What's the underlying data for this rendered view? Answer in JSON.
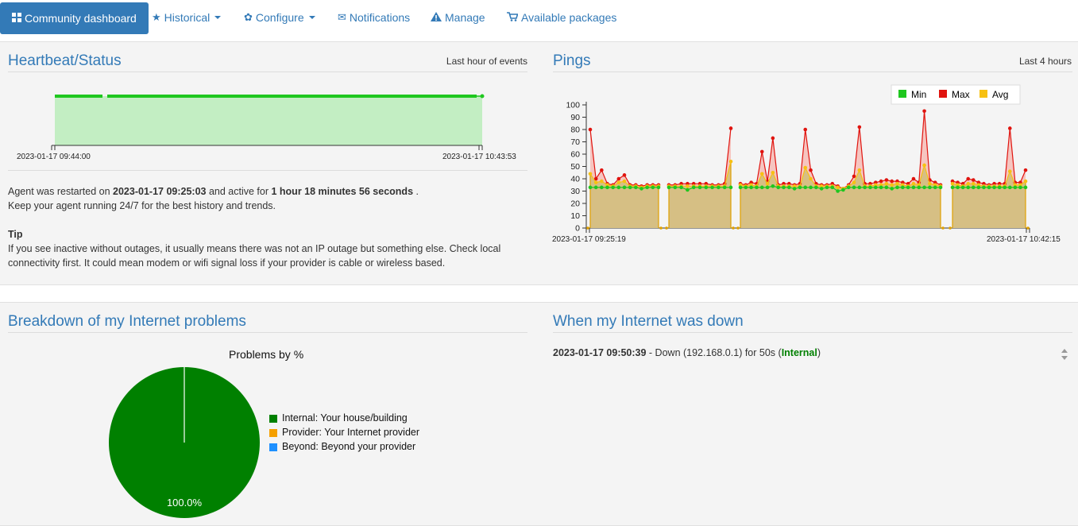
{
  "nav": {
    "items": [
      {
        "label": "Community dashboard",
        "icon": "grid-icon",
        "active": true
      },
      {
        "label": "Historical",
        "icon": "star-icon",
        "dropdown": true
      },
      {
        "label": "Configure",
        "icon": "gear-icon",
        "dropdown": true
      },
      {
        "label": "Notifications",
        "icon": "envelope-icon"
      },
      {
        "label": "Manage",
        "icon": "warning-icon"
      },
      {
        "label": "Available packages",
        "icon": "cart-icon"
      }
    ]
  },
  "heartbeat": {
    "title": "Heartbeat/Status",
    "range": "Last hour of events",
    "start_label": "2023-01-17 09:44:00",
    "end_label": "2023-01-17 10:43:53"
  },
  "agent": {
    "line1_pre": "Agent was restarted on ",
    "restart_time": "2023-01-17 09:25:03",
    "line1_mid": " and active for ",
    "active_for": "1 hour 18 minutes 56 seconds",
    "line1_post": " .",
    "line2": "Keep your agent running 24/7 for the best history and trends.",
    "tip_title": "Tip",
    "tip_text": "If you see inactive without outages, it usually means there was not an IP outage but something else. Check local connectivity first. It could mean modem or wifi signal loss if your provider is cable or wireless based."
  },
  "pings": {
    "title": "Pings",
    "range": "Last 4 hours",
    "legend": [
      {
        "label": "Min",
        "color": "#1fc71f"
      },
      {
        "label": "Max",
        "color": "#e0140f"
      },
      {
        "label": "Avg",
        "color": "#f7c112"
      }
    ],
    "x_start": "2023-01-17 09:25:19",
    "x_end": "2023-01-17 10:42:15",
    "y_ticks": [
      "100",
      "90",
      "80",
      "70",
      "60",
      "50",
      "40",
      "30",
      "20",
      "10",
      "0"
    ]
  },
  "chart_data": {
    "type": "line",
    "title": "",
    "ylim": [
      0,
      100
    ],
    "x_range": [
      "2023-01-17 09:25:19",
      "2023-01-17 10:42:15"
    ],
    "segments": [
      {
        "max": [
          80,
          40,
          47,
          36,
          35,
          40,
          43,
          35,
          35,
          34,
          35,
          35,
          35
        ],
        "avg": [
          44,
          37,
          38,
          35,
          34,
          37,
          38,
          34,
          34,
          33,
          34,
          34,
          34
        ],
        "min": [
          33,
          33,
          33,
          33,
          33,
          33,
          33,
          33,
          33,
          32,
          33,
          33,
          33
        ]
      },
      {
        "max": [
          35,
          35,
          36,
          36,
          36,
          36,
          36,
          35,
          35,
          36,
          81
        ],
        "avg": [
          34,
          34,
          34,
          34,
          34,
          34,
          34,
          34,
          34,
          34,
          54
        ],
        "min": [
          33,
          33,
          33,
          31,
          33,
          33,
          33,
          33,
          33,
          33,
          33
        ]
      },
      {
        "max": [
          36,
          35,
          37,
          36,
          62,
          38,
          73,
          35,
          36,
          36,
          35,
          36,
          80,
          47,
          36,
          35,
          35,
          36,
          34,
          32,
          35,
          42,
          82,
          36,
          36,
          37,
          38,
          39,
          38,
          38,
          37,
          36,
          40,
          37,
          95,
          39,
          37,
          35
        ],
        "avg": [
          35,
          34,
          35,
          34,
          44,
          36,
          45,
          34,
          34,
          34,
          34,
          34,
          49,
          40,
          34,
          34,
          34,
          34,
          33,
          32,
          34,
          37,
          47,
          34,
          34,
          35,
          35,
          36,
          35,
          36,
          35,
          34,
          36,
          35,
          51,
          36,
          35,
          34
        ],
        "min": [
          33,
          33,
          33,
          33,
          33,
          33,
          34,
          33,
          33,
          33,
          32,
          33,
          33,
          33,
          33,
          32,
          33,
          33,
          30,
          31,
          33,
          33,
          33,
          33,
          33,
          33,
          33,
          33,
          32,
          33,
          33,
          33,
          33,
          33,
          33,
          33,
          33,
          33
        ]
      },
      {
        "max": [
          38,
          37,
          36,
          40,
          39,
          37,
          36,
          35,
          36,
          36,
          36,
          81,
          37,
          37,
          47
        ],
        "avg": [
          36,
          35,
          34,
          36,
          36,
          35,
          34,
          34,
          34,
          34,
          34,
          46,
          35,
          35,
          38
        ],
        "min": [
          33,
          33,
          33,
          33,
          33,
          33,
          33,
          33,
          33,
          33,
          33,
          33,
          33,
          33,
          33
        ]
      }
    ]
  },
  "breakdown": {
    "title": "Breakdown of my Internet problems",
    "chart_title": "Problems by %",
    "slice_label": "100.0%",
    "legend": [
      {
        "label": "Internal: Your house/building",
        "color": "#008000"
      },
      {
        "label": "Provider: Your Internet provider",
        "color": "#f5a000"
      },
      {
        "label": "Beyond: Beyond your provider",
        "color": "#1e90ff"
      }
    ],
    "slices": [
      {
        "name": "Internal",
        "value": 100.0
      },
      {
        "name": "Provider",
        "value": 0
      },
      {
        "name": "Beyond",
        "value": 0
      }
    ]
  },
  "downtime": {
    "title": "When my Internet was down",
    "entries": [
      {
        "time": "2023-01-17 09:50:39",
        "desc": " - Down (192.168.0.1) for 50s (",
        "category": "Internal",
        "close": ")"
      }
    ]
  }
}
